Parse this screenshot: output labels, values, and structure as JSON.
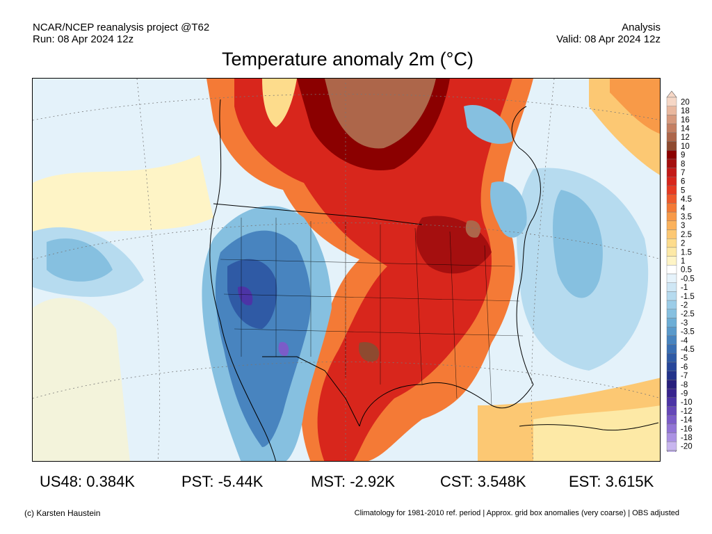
{
  "header": {
    "source_line1": "NCAR/NCEP reanalysis project @T62",
    "source_line2": "Run: 08 Apr 2024 12z",
    "type": "Analysis",
    "valid": "Valid: 08 Apr 2024 12z"
  },
  "title": "Temperature anomaly 2m (°C)",
  "colorbar": {
    "labels": [
      "20",
      "18",
      "16",
      "14",
      "12",
      "10",
      "9",
      "8",
      "7",
      "6",
      "5",
      "4.5",
      "4",
      "3.5",
      "3",
      "2.5",
      "2",
      "1.5",
      "1",
      "0.5",
      "-0.5",
      "-1",
      "-1.5",
      "-2",
      "-2.5",
      "-3",
      "-3.5",
      "-4",
      "-4.5",
      "-5",
      "-6",
      "-7",
      "-8",
      "-9",
      "-10",
      "-12",
      "-14",
      "-16",
      "-18",
      "-20"
    ],
    "colors": [
      "#f6d7c6",
      "#e9b89f",
      "#d79a7e",
      "#c47f62",
      "#ad664a",
      "#8e4a30",
      "#8b0000",
      "#a50f0f",
      "#c41a18",
      "#d8261c",
      "#e63a22",
      "#ee5a2c",
      "#f47a36",
      "#f89a48",
      "#fbb25c",
      "#fcc873",
      "#fddc8c",
      "#fde9a6",
      "#fef4c6",
      "#ffffff",
      "#e6f3fb",
      "#cfe7f5",
      "#b6dbef",
      "#9ccde8",
      "#86c0e0",
      "#6daed6",
      "#5a9acb",
      "#4884bf",
      "#3a6fb3",
      "#2f5aa5",
      "#27469a",
      "#23338a",
      "#271f7c",
      "#37238e",
      "#4c34a6",
      "#6547b8",
      "#7b5cc8",
      "#9275d6",
      "#ab92e3",
      "#c8b6ef"
    ]
  },
  "stats": [
    {
      "label": "US48: 0.384K"
    },
    {
      "label": "PST: -5.44K"
    },
    {
      "label": "MST: -2.92K"
    },
    {
      "label": "CST: 3.548K"
    },
    {
      "label": "EST: 3.615K"
    }
  ],
  "footer": {
    "credit": "(c) Karsten Haustein",
    "note": "Climatology for 1981-2010 ref. period | Approx. grid box anomalies (very coarse) | OBS adjusted"
  },
  "map": {
    "background_color": "#e4f2fa",
    "legend_colors": {
      "warm_strong": "#8e4a30",
      "warm": "#c41a18",
      "cold_strong": "#2f5aa5",
      "cold_extreme": "#4c34a6"
    }
  }
}
